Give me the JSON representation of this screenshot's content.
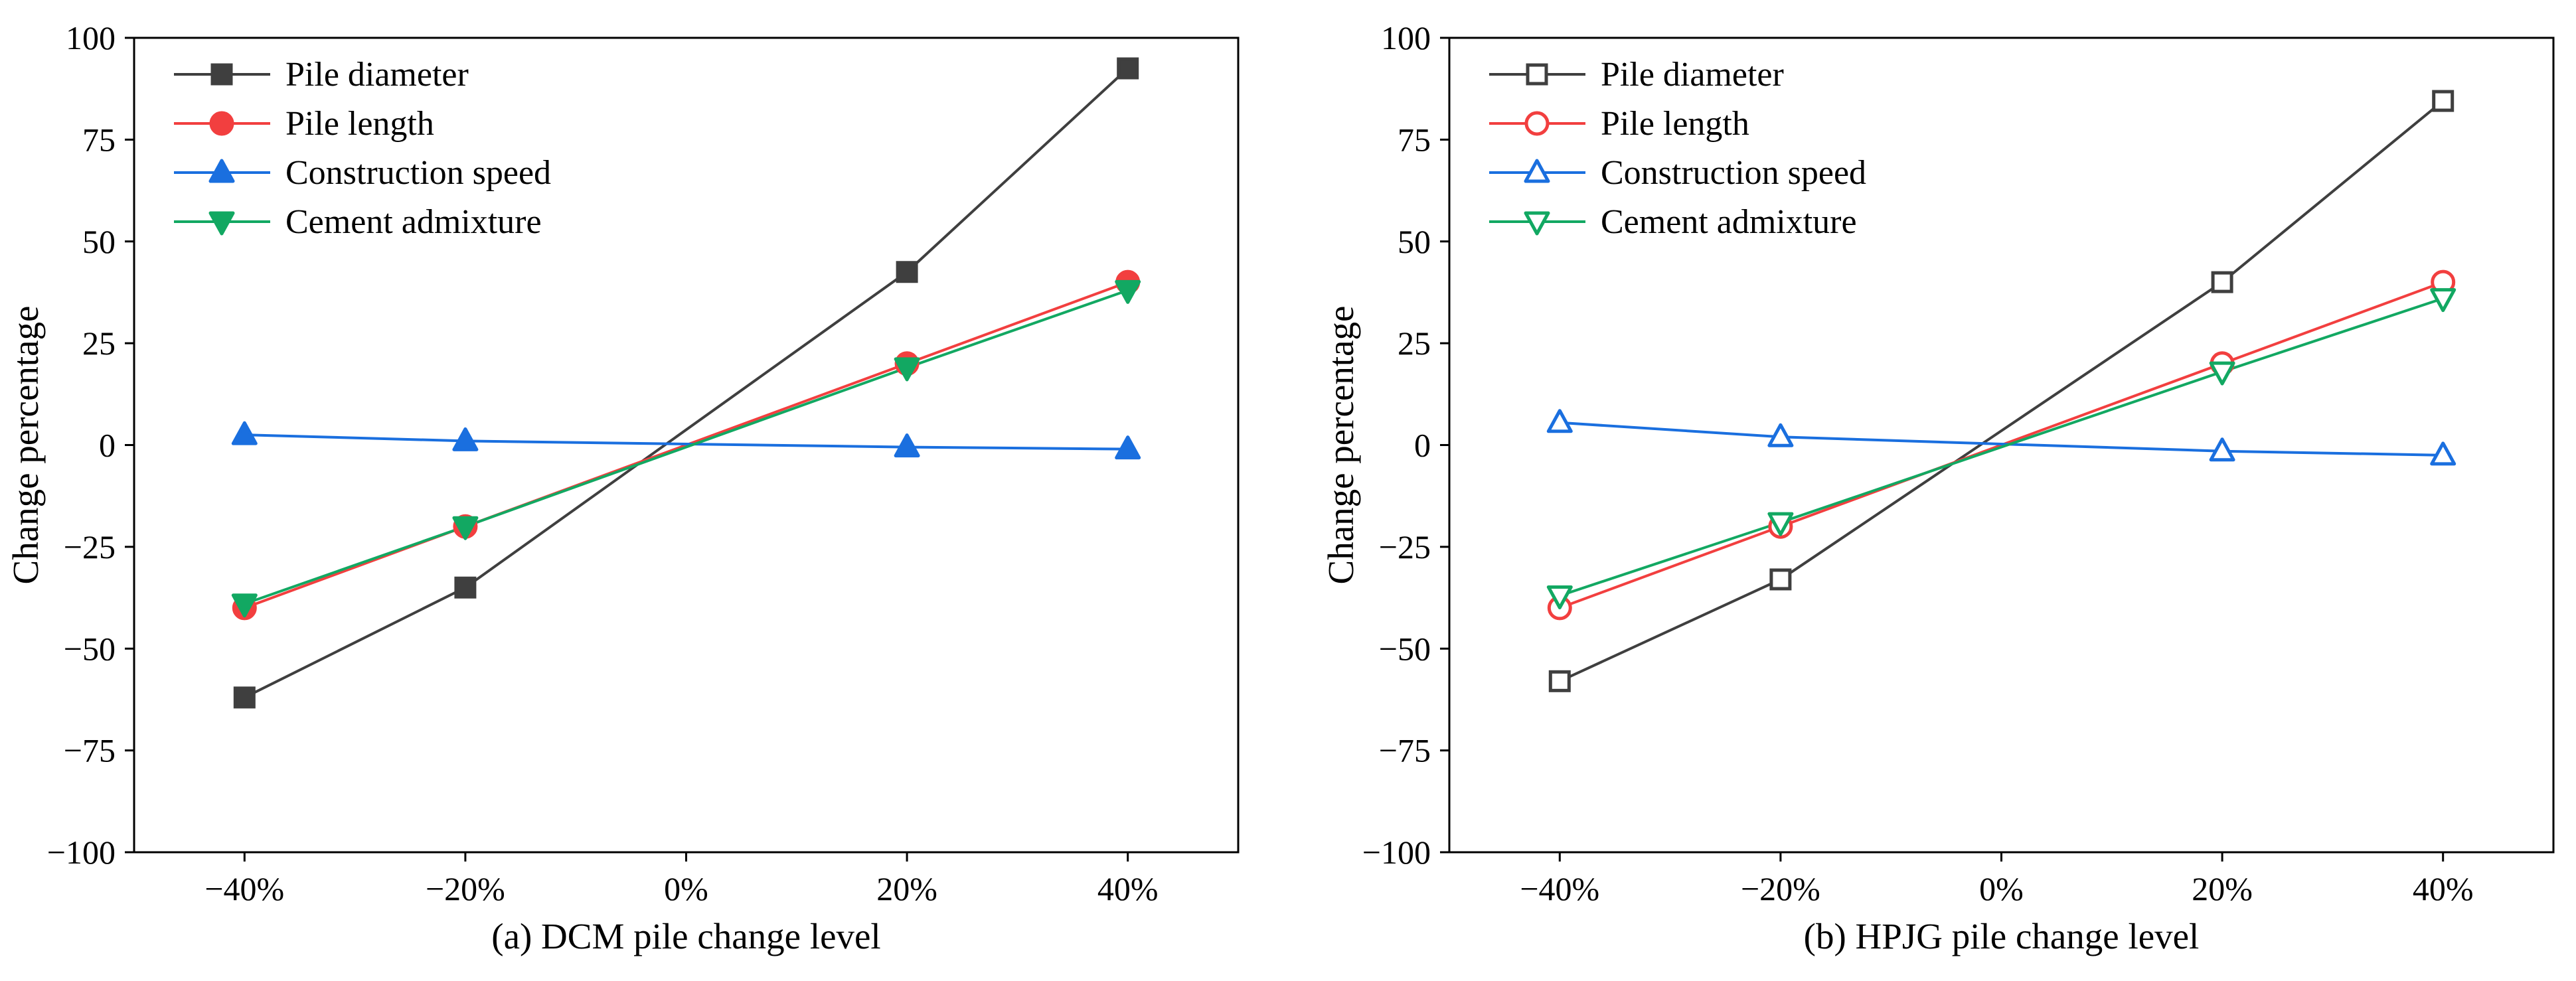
{
  "chart_data": [
    {
      "type": "line",
      "panel": "a",
      "xlabel": "(a) DCM pile change level",
      "ylabel": "Change percentage",
      "categories": [
        "−40%",
        "−20%",
        "0%",
        "20%",
        "40%"
      ],
      "x": [
        -40,
        -20,
        20,
        40
      ],
      "xlim": [
        -50,
        50
      ],
      "ylim": [
        -100,
        100
      ],
      "yticks": [
        -100,
        -75,
        -50,
        -25,
        0,
        25,
        50,
        75,
        100
      ],
      "yticklabels": [
        "−100",
        "−75",
        "−50",
        "−25",
        "0",
        "25",
        "50",
        "75",
        "100"
      ],
      "grid": false,
      "legend_position": "top-left",
      "series": [
        {
          "name": "Pile diameter",
          "color": "#3f3f3f",
          "marker": "square",
          "filled": true,
          "values": [
            -62,
            -35,
            42.5,
            92.5
          ]
        },
        {
          "name": "Pile length",
          "color": "#f23f3f",
          "marker": "circle",
          "filled": true,
          "values": [
            -40,
            -20,
            20,
            40
          ]
        },
        {
          "name": "Construction speed",
          "color": "#1a6fdf",
          "marker": "triangle-up",
          "filled": true,
          "values": [
            2.5,
            1,
            -0.5,
            -1
          ]
        },
        {
          "name": "Cement admixture",
          "color": "#12a862",
          "marker": "triangle-down",
          "filled": true,
          "values": [
            -39,
            -20,
            19,
            38
          ]
        }
      ]
    },
    {
      "type": "line",
      "panel": "b",
      "xlabel": "(b) HPJG pile change level",
      "ylabel": "Change percentage",
      "categories": [
        "−40%",
        "−20%",
        "0%",
        "20%",
        "40%"
      ],
      "x": [
        -40,
        -20,
        20,
        40
      ],
      "xlim": [
        -50,
        50
      ],
      "ylim": [
        -100,
        100
      ],
      "yticks": [
        -100,
        -75,
        -50,
        -25,
        0,
        25,
        50,
        75,
        100
      ],
      "yticklabels": [
        "−100",
        "−75",
        "−50",
        "−25",
        "0",
        "25",
        "50",
        "75",
        "100"
      ],
      "grid": false,
      "legend_position": "top-left",
      "series": [
        {
          "name": "Pile diameter",
          "color": "#3f3f3f",
          "marker": "square",
          "filled": false,
          "values": [
            -58,
            -33,
            40,
            84.5
          ]
        },
        {
          "name": "Pile length",
          "color": "#f23f3f",
          "marker": "circle",
          "filled": false,
          "values": [
            -40,
            -20,
            20,
            40
          ]
        },
        {
          "name": "Construction speed",
          "color": "#1a6fdf",
          "marker": "triangle-up",
          "filled": false,
          "values": [
            5.5,
            2,
            -1.5,
            -2.5
          ]
        },
        {
          "name": "Cement admixture",
          "color": "#12a862",
          "marker": "triangle-down",
          "filled": false,
          "values": [
            -37,
            -19,
            18,
            36
          ]
        }
      ]
    }
  ]
}
